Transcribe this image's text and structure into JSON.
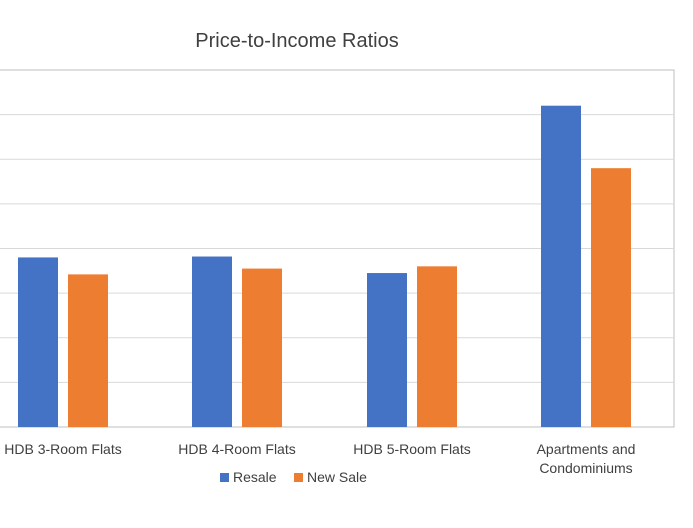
{
  "chart_data": {
    "type": "bar",
    "title": "Price-to-Income Ratios",
    "categories": [
      [
        "HDB 3-Room Flats"
      ],
      [
        "HDB 4-Room Flats"
      ],
      [
        "HDB 5-Room Flats"
      ],
      [
        "Apartments and",
        "Condominiums"
      ]
    ],
    "series": [
      {
        "name": "Resale",
        "color": "#4472C4",
        "values": [
          3.8,
          3.82,
          3.45,
          7.2
        ]
      },
      {
        "name": "New Sale",
        "color": "#ED7D31",
        "values": [
          3.42,
          3.55,
          3.6,
          5.8
        ]
      }
    ],
    "ylim": [
      0,
      8
    ],
    "grid": true,
    "legend_position": "bottom"
  }
}
